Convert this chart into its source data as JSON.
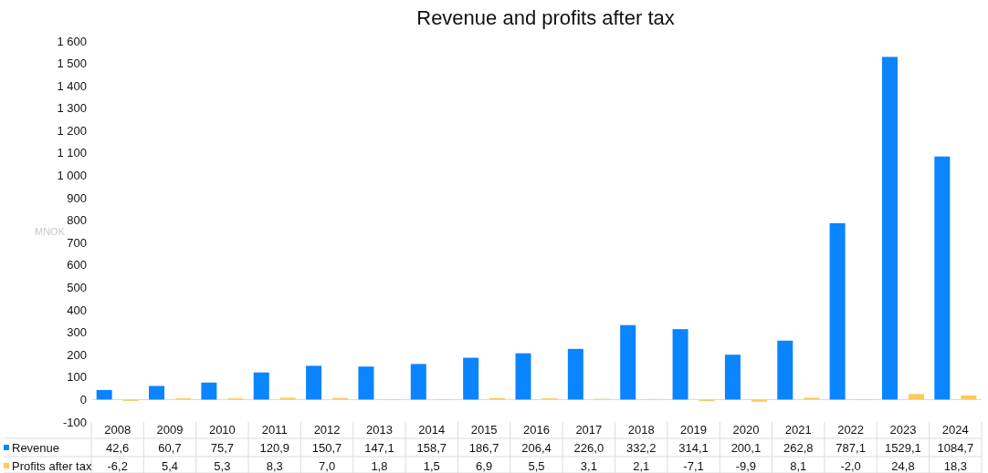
{
  "chart_data": {
    "type": "bar",
    "title": "Revenue and profits after tax",
    "ylabel": "MNOK",
    "categories": [
      "2008",
      "2009",
      "2010",
      "2011",
      "2012",
      "2013",
      "2014",
      "2015",
      "2016",
      "2017",
      "2018",
      "2019",
      "2020",
      "2021",
      "2022",
      "2023",
      "2024"
    ],
    "series": [
      {
        "name": "Revenue",
        "color": "#0a84ff",
        "values": [
          42.6,
          60.7,
          75.7,
          120.9,
          150.7,
          147.1,
          158.7,
          186.7,
          206.4,
          226.0,
          332.2,
          314.1,
          200.1,
          262.8,
          787.1,
          1529.1,
          1084.7
        ],
        "value_labels": [
          "42,6",
          "60,7",
          "75,7",
          "120,9",
          "150,7",
          "147,1",
          "158,7",
          "186,7",
          "206,4",
          "226,0",
          "332,2",
          "314,1",
          "200,1",
          "262,8",
          "787,1",
          "1529,1",
          "1084,7"
        ]
      },
      {
        "name": "Profits after tax",
        "color": "#ffc95c",
        "values": [
          -6.2,
          5.4,
          5.3,
          8.3,
          7.0,
          1.8,
          1.5,
          6.9,
          5.5,
          3.1,
          2.1,
          -7.1,
          -9.9,
          8.1,
          -2.0,
          24.8,
          18.3
        ],
        "value_labels": [
          "-6,2",
          "5,4",
          "5,3",
          "8,3",
          "7,0",
          "1,8",
          "1,5",
          "6,9",
          "5,5",
          "3,1",
          "2,1",
          "-7,1",
          "-9,9",
          "8,1",
          "-2,0",
          "24,8",
          "18,3"
        ]
      }
    ],
    "ylim": [
      -100,
      1600
    ],
    "yticks": [
      -100,
      0,
      100,
      200,
      300,
      400,
      500,
      600,
      700,
      800,
      900,
      {
        "value": 1000,
        "label": "1 000"
      },
      {
        "value": 1100,
        "label": "1 100"
      },
      {
        "value": 1200,
        "label": "1 200"
      },
      {
        "value": 1300,
        "label": "1 300"
      },
      {
        "value": 1400,
        "label": "1 400"
      },
      {
        "value": 1500,
        "label": "1 500"
      },
      {
        "value": 1600,
        "label": "1 600"
      }
    ],
    "grid": false,
    "legend": "bottom left"
  }
}
